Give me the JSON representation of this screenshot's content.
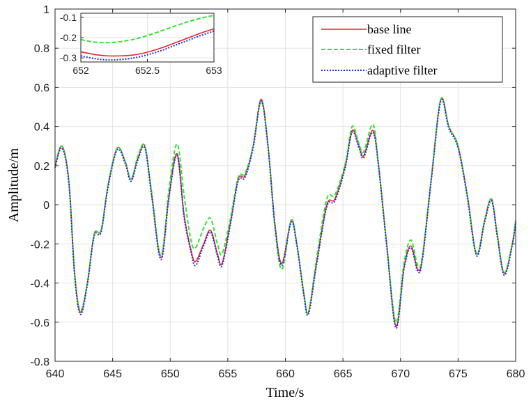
{
  "chart_data": {
    "type": "line",
    "xlabel": "Time/s",
    "ylabel": "Amplitude/m",
    "xlim": [
      640,
      680
    ],
    "ylim": [
      -0.8,
      1.0
    ],
    "xticks": [
      640,
      645,
      650,
      655,
      660,
      665,
      670,
      675,
      680
    ],
    "yticks": [
      -0.8,
      -0.6,
      -0.4,
      -0.2,
      0,
      0.2,
      0.4,
      0.6,
      0.8,
      1
    ],
    "ytick_labels": [
      "-0.8",
      "-0.6",
      "-0.4",
      "-0.2",
      "0",
      "0.2",
      "0.4",
      "0.6",
      "0.8",
      "1"
    ],
    "grid": true,
    "legend_position": "top-right",
    "series": [
      {
        "name": "base line",
        "style": "solid",
        "color": "#e8232a",
        "points": [
          [
            640,
            0.2
          ],
          [
            640.6,
            0.3
          ],
          [
            641.2,
            0.12
          ],
          [
            641.7,
            -0.35
          ],
          [
            642.2,
            -0.55
          ],
          [
            642.8,
            -0.4
          ],
          [
            643.4,
            -0.15
          ],
          [
            644.0,
            -0.13
          ],
          [
            644.6,
            0.1
          ],
          [
            645.4,
            0.29
          ],
          [
            646.1,
            0.22
          ],
          [
            646.6,
            0.13
          ],
          [
            647.2,
            0.24
          ],
          [
            647.8,
            0.3
          ],
          [
            648.4,
            0.05
          ],
          [
            649.2,
            -0.27
          ],
          [
            649.9,
            0.05
          ],
          [
            650.6,
            0.26
          ],
          [
            651.2,
            -0.05
          ],
          [
            651.8,
            -0.23
          ],
          [
            652.2,
            -0.29
          ],
          [
            652.9,
            -0.2
          ],
          [
            653.5,
            -0.13
          ],
          [
            654.1,
            -0.25
          ],
          [
            654.5,
            -0.3
          ],
          [
            655.2,
            -0.1
          ],
          [
            655.9,
            0.13
          ],
          [
            656.5,
            0.15
          ],
          [
            657.2,
            0.3
          ],
          [
            657.9,
            0.54
          ],
          [
            658.5,
            0.3
          ],
          [
            659.1,
            -0.1
          ],
          [
            659.7,
            -0.3
          ],
          [
            660.5,
            -0.08
          ],
          [
            661.0,
            -0.2
          ],
          [
            661.6,
            -0.45
          ],
          [
            662.0,
            -0.55
          ],
          [
            662.7,
            -0.3
          ],
          [
            663.6,
            0.0
          ],
          [
            664.3,
            0.03
          ],
          [
            665.2,
            0.2
          ],
          [
            665.8,
            0.38
          ],
          [
            666.4,
            0.3
          ],
          [
            666.8,
            0.25
          ],
          [
            667.6,
            0.38
          ],
          [
            668.1,
            0.2
          ],
          [
            668.8,
            -0.2
          ],
          [
            669.6,
            -0.62
          ],
          [
            670.3,
            -0.32
          ],
          [
            670.9,
            -0.21
          ],
          [
            671.5,
            -0.33
          ],
          [
            671.9,
            -0.27
          ],
          [
            672.7,
            0.15
          ],
          [
            673.5,
            0.54
          ],
          [
            674.2,
            0.4
          ],
          [
            675.0,
            0.3
          ],
          [
            675.8,
            0.05
          ],
          [
            676.6,
            -0.25
          ],
          [
            677.3,
            -0.08
          ],
          [
            677.9,
            0.03
          ],
          [
            678.4,
            -0.15
          ],
          [
            679.0,
            -0.35
          ],
          [
            679.7,
            -0.2
          ],
          [
            680,
            -0.08
          ]
        ]
      },
      {
        "name": "fixed filter",
        "style": "dashed",
        "color": "#2ee52e",
        "points": [
          [
            640,
            0.2
          ],
          [
            640.6,
            0.3
          ],
          [
            641.2,
            0.12
          ],
          [
            641.7,
            -0.35
          ],
          [
            642.2,
            -0.54
          ],
          [
            642.8,
            -0.4
          ],
          [
            643.4,
            -0.15
          ],
          [
            644.0,
            -0.13
          ],
          [
            644.6,
            0.1
          ],
          [
            645.4,
            0.29
          ],
          [
            646.1,
            0.22
          ],
          [
            646.6,
            0.13
          ],
          [
            647.2,
            0.25
          ],
          [
            647.8,
            0.3
          ],
          [
            648.4,
            0.06
          ],
          [
            649.2,
            -0.26
          ],
          [
            649.9,
            0.08
          ],
          [
            650.6,
            0.31
          ],
          [
            651.2,
            0.05
          ],
          [
            651.8,
            -0.18
          ],
          [
            652.2,
            -0.22
          ],
          [
            652.9,
            -0.12
          ],
          [
            653.5,
            -0.07
          ],
          [
            654.1,
            -0.2
          ],
          [
            654.5,
            -0.25
          ],
          [
            655.2,
            -0.08
          ],
          [
            655.9,
            0.14
          ],
          [
            656.5,
            0.16
          ],
          [
            657.2,
            0.3
          ],
          [
            657.9,
            0.53
          ],
          [
            658.5,
            0.3
          ],
          [
            659.1,
            -0.12
          ],
          [
            659.7,
            -0.33
          ],
          [
            660.5,
            -0.08
          ],
          [
            661.0,
            -0.2
          ],
          [
            661.6,
            -0.45
          ],
          [
            662.0,
            -0.55
          ],
          [
            662.7,
            -0.28
          ],
          [
            663.6,
            0.03
          ],
          [
            664.3,
            0.05
          ],
          [
            665.2,
            0.21
          ],
          [
            665.8,
            0.4
          ],
          [
            666.4,
            0.31
          ],
          [
            666.8,
            0.27
          ],
          [
            667.6,
            0.41
          ],
          [
            668.1,
            0.2
          ],
          [
            668.8,
            -0.2
          ],
          [
            669.6,
            -0.6
          ],
          [
            670.3,
            -0.3
          ],
          [
            670.9,
            -0.18
          ],
          [
            671.5,
            -0.31
          ],
          [
            671.9,
            -0.26
          ],
          [
            672.7,
            0.15
          ],
          [
            673.5,
            0.54
          ],
          [
            674.2,
            0.4
          ],
          [
            675.0,
            0.3
          ],
          [
            675.8,
            0.05
          ],
          [
            676.6,
            -0.25
          ],
          [
            677.3,
            -0.08
          ],
          [
            677.9,
            0.03
          ],
          [
            678.4,
            -0.15
          ],
          [
            679.0,
            -0.35
          ],
          [
            679.7,
            -0.2
          ],
          [
            680,
            -0.08
          ]
        ]
      },
      {
        "name": "adaptive filter",
        "style": "dotted",
        "color": "#1f2fd8",
        "points": [
          [
            640,
            0.19
          ],
          [
            640.6,
            0.29
          ],
          [
            641.2,
            0.11
          ],
          [
            641.7,
            -0.36
          ],
          [
            642.2,
            -0.56
          ],
          [
            642.8,
            -0.41
          ],
          [
            643.4,
            -0.16
          ],
          [
            644.0,
            -0.14
          ],
          [
            644.6,
            0.09
          ],
          [
            645.4,
            0.28
          ],
          [
            646.1,
            0.21
          ],
          [
            646.6,
            0.12
          ],
          [
            647.2,
            0.23
          ],
          [
            647.8,
            0.29
          ],
          [
            648.4,
            0.04
          ],
          [
            649.2,
            -0.28
          ],
          [
            649.9,
            0.04
          ],
          [
            650.6,
            0.25
          ],
          [
            651.2,
            -0.06
          ],
          [
            651.8,
            -0.24
          ],
          [
            652.2,
            -0.31
          ],
          [
            652.9,
            -0.21
          ],
          [
            653.5,
            -0.14
          ],
          [
            654.1,
            -0.26
          ],
          [
            654.5,
            -0.31
          ],
          [
            655.2,
            -0.11
          ],
          [
            655.9,
            0.12
          ],
          [
            656.5,
            0.14
          ],
          [
            657.2,
            0.29
          ],
          [
            657.9,
            0.53
          ],
          [
            658.5,
            0.29
          ],
          [
            659.1,
            -0.11
          ],
          [
            659.7,
            -0.31
          ],
          [
            660.5,
            -0.09
          ],
          [
            661.0,
            -0.21
          ],
          [
            661.6,
            -0.46
          ],
          [
            662.0,
            -0.56
          ],
          [
            662.7,
            -0.31
          ],
          [
            663.6,
            -0.01
          ],
          [
            664.3,
            0.02
          ],
          [
            665.2,
            0.19
          ],
          [
            665.8,
            0.37
          ],
          [
            666.4,
            0.29
          ],
          [
            666.8,
            0.24
          ],
          [
            667.6,
            0.37
          ],
          [
            668.1,
            0.19
          ],
          [
            668.8,
            -0.21
          ],
          [
            669.6,
            -0.63
          ],
          [
            670.3,
            -0.33
          ],
          [
            670.9,
            -0.22
          ],
          [
            671.5,
            -0.34
          ],
          [
            671.9,
            -0.28
          ],
          [
            672.7,
            0.14
          ],
          [
            673.5,
            0.53
          ],
          [
            674.2,
            0.39
          ],
          [
            675.0,
            0.29
          ],
          [
            675.8,
            0.04
          ],
          [
            676.6,
            -0.26
          ],
          [
            677.3,
            -0.09
          ],
          [
            677.9,
            0.02
          ],
          [
            678.4,
            -0.16
          ],
          [
            679.0,
            -0.36
          ],
          [
            679.7,
            -0.21
          ],
          [
            680,
            -0.09
          ]
        ]
      }
    ],
    "inset": {
      "xlim": [
        652,
        653
      ],
      "ylim": [
        -0.32,
        -0.08
      ],
      "xticks": [
        652,
        652.5,
        653
      ],
      "xtick_labels": [
        "652",
        "652.5",
        "653"
      ],
      "yticks": [
        -0.1,
        -0.2,
        -0.3
      ],
      "ytick_labels": [
        "-0.1",
        "-0.2",
        "-0.3"
      ],
      "series": [
        {
          "name": "base line",
          "points": [
            [
              652,
              -0.27
            ],
            [
              652.1,
              -0.283
            ],
            [
              652.2,
              -0.29
            ],
            [
              652.3,
              -0.29
            ],
            [
              652.4,
              -0.285
            ],
            [
              652.5,
              -0.272
            ],
            [
              652.6,
              -0.252
            ],
            [
              652.7,
              -0.228
            ],
            [
              652.8,
              -0.203
            ],
            [
              652.9,
              -0.178
            ],
            [
              653,
              -0.157
            ]
          ]
        },
        {
          "name": "fixed filter",
          "points": [
            [
              652,
              -0.21
            ],
            [
              652.1,
              -0.222
            ],
            [
              652.2,
              -0.225
            ],
            [
              652.3,
              -0.22
            ],
            [
              652.4,
              -0.208
            ],
            [
              652.5,
              -0.19
            ],
            [
              652.6,
              -0.168
            ],
            [
              652.7,
              -0.145
            ],
            [
              652.8,
              -0.123
            ],
            [
              652.9,
              -0.105
            ],
            [
              653,
              -0.09
            ]
          ]
        },
        {
          "name": "adaptive filter",
          "points": [
            [
              652,
              -0.29
            ],
            [
              652.1,
              -0.303
            ],
            [
              652.2,
              -0.31
            ],
            [
              652.3,
              -0.308
            ],
            [
              652.4,
              -0.3
            ],
            [
              652.5,
              -0.285
            ],
            [
              652.6,
              -0.265
            ],
            [
              652.7,
              -0.24
            ],
            [
              652.8,
              -0.215
            ],
            [
              652.9,
              -0.19
            ],
            [
              653,
              -0.168
            ]
          ]
        }
      ]
    }
  }
}
